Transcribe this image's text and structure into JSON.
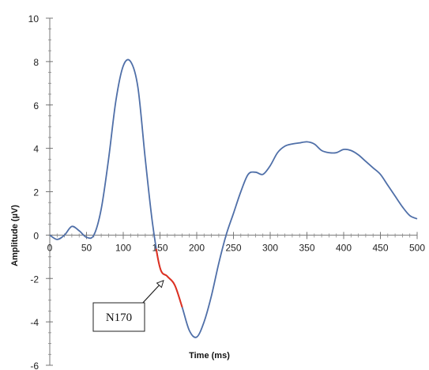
{
  "chart_data": {
    "type": "line",
    "title": "",
    "xlabel": "Time (ms)",
    "ylabel": "Amplitude (µV)",
    "xlim": [
      0,
      500
    ],
    "ylim": [
      -6,
      10
    ],
    "x_ticks": [
      0,
      50,
      100,
      150,
      200,
      250,
      300,
      350,
      400,
      450,
      500
    ],
    "x_tick_labels": [
      "0",
      "50",
      "100",
      "150",
      "200",
      "250",
      "300",
      "350",
      "400",
      "450",
      "500"
    ],
    "y_ticks": [
      -6,
      -4,
      -2,
      0,
      2,
      4,
      6,
      8,
      10
    ],
    "y_tick_labels": [
      "-6",
      "-4",
      "-2",
      "0",
      "2",
      "4",
      "6",
      "8",
      "10"
    ],
    "grid": false,
    "x": [
      0,
      10,
      20,
      30,
      40,
      50,
      60,
      70,
      80,
      90,
      100,
      110,
      120,
      130,
      140,
      150,
      160,
      170,
      180,
      190,
      200,
      210,
      220,
      230,
      240,
      250,
      260,
      270,
      280,
      290,
      300,
      310,
      320,
      330,
      340,
      350,
      360,
      370,
      380,
      390,
      400,
      410,
      420,
      430,
      440,
      450,
      460,
      470,
      480,
      490,
      500
    ],
    "series": [
      {
        "color": "#4f6fa8",
        "values": [
          0.0,
          -0.2,
          0.0,
          0.4,
          0.2,
          -0.1,
          0.0,
          1.2,
          3.5,
          6.2,
          7.8,
          8.0,
          6.8,
          3.5,
          0.5,
          -1.5,
          -1.9,
          -2.3,
          -3.3,
          -4.4,
          -4.7,
          -4.0,
          -2.8,
          -1.3,
          0.0,
          1.0,
          2.0,
          2.8,
          2.9,
          2.8,
          3.2,
          3.8,
          4.1,
          4.2,
          4.25,
          4.3,
          4.2,
          3.9,
          3.8,
          3.8,
          3.95,
          3.9,
          3.7,
          3.4,
          3.1,
          2.8,
          2.3,
          1.8,
          1.3,
          0.9,
          0.75
        ]
      }
    ],
    "highlight": {
      "name": "N170",
      "color": "#e03020",
      "x_range": [
        145,
        180
      ]
    },
    "annotations": [
      {
        "text": "N170",
        "target_x": 158,
        "target_y": -1.95
      }
    ]
  }
}
